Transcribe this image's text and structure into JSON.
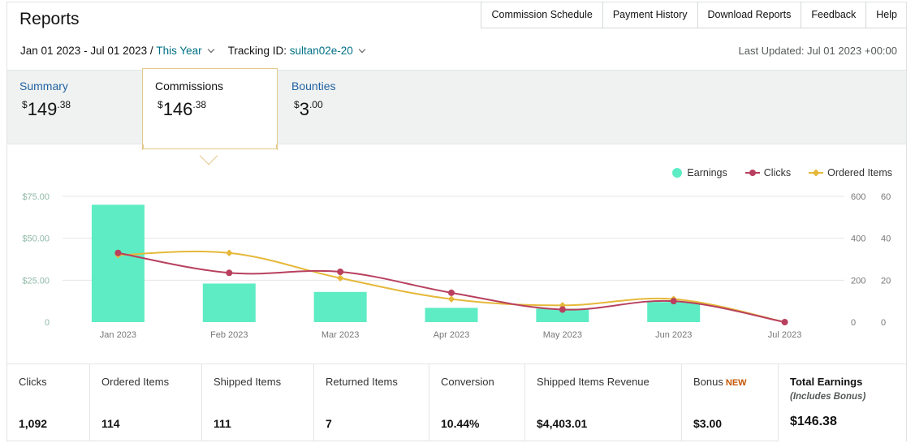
{
  "header": {
    "title": "Reports",
    "nav": [
      "Commission Schedule",
      "Payment History",
      "Download Reports",
      "Feedback",
      "Help"
    ]
  },
  "filters": {
    "date_range": "Jan 01 2023 - Jul 01 2023 /",
    "period": "This Year",
    "tracking_label": "Tracking ID:",
    "tracking_id": "sultan02e-20",
    "last_updated": "Last Updated: Jul 01 2023 +00:00"
  },
  "tabs": {
    "summary": {
      "label": "Summary",
      "currency": "$",
      "dollars": "149",
      "cents": ".38"
    },
    "commissions": {
      "label": "Commissions",
      "currency": "$",
      "dollars": "146",
      "cents": ".38",
      "selected": true
    },
    "bounties": {
      "label": "Bounties",
      "currency": "$",
      "dollars": "3",
      "cents": ".00"
    }
  },
  "legend": {
    "earnings": "Earnings",
    "clicks": "Clicks",
    "ordered_items": "Ordered Items"
  },
  "colors": {
    "earnings": "#5eecc4",
    "clicks": "#b8405e",
    "ordered_items": "#e6b83a",
    "accent_link": "#007185",
    "tab_link": "#2162a1",
    "new_badge": "#c45500"
  },
  "chart_data": {
    "type": "bar",
    "categories": [
      "Jan 2023",
      "Feb 2023",
      "Mar 2023",
      "Apr 2023",
      "May 2023",
      "Jun 2023",
      "Jul 2023"
    ],
    "series": [
      {
        "name": "Earnings",
        "kind": "bar",
        "axis": "left",
        "values": [
          70,
          23,
          18,
          8.5,
          8,
          12,
          0
        ]
      },
      {
        "name": "Clicks",
        "kind": "line",
        "axis": "right1",
        "values": [
          330,
          235,
          240,
          140,
          60,
          100,
          0
        ]
      },
      {
        "name": "Ordered Items",
        "kind": "line",
        "axis": "right2",
        "values": [
          32,
          33,
          21,
          11,
          8,
          11,
          0
        ]
      }
    ],
    "y_left": {
      "ticks": [
        "0",
        "$25.00",
        "$50.00",
        "$75.00"
      ],
      "tick_values": [
        0,
        25,
        50,
        75
      ],
      "range": [
        0,
        75
      ]
    },
    "y_right1": {
      "ticks": [
        "0",
        "200",
        "400",
        "600"
      ],
      "tick_values": [
        0,
        200,
        400,
        600
      ],
      "range": [
        0,
        600
      ]
    },
    "y_right2": {
      "ticks": [
        "0",
        "20",
        "40",
        "60"
      ],
      "tick_values": [
        0,
        20,
        40,
        60
      ],
      "range": [
        0,
        60
      ]
    },
    "grid": true,
    "legend_position": "top-right"
  },
  "stats": [
    {
      "label": "Clicks",
      "value": "1,092"
    },
    {
      "label": "Ordered Items",
      "value": "114"
    },
    {
      "label": "Shipped Items",
      "value": "111"
    },
    {
      "label": "Returned Items",
      "value": "7"
    },
    {
      "label": "Conversion",
      "value": "10.44%"
    },
    {
      "label": "Shipped Items Revenue",
      "value": "$4,403.01"
    },
    {
      "label": "Bonus",
      "badge": "NEW",
      "value": "$3.00"
    },
    {
      "label": "Total Earnings",
      "sublabel": "(Includes Bonus)",
      "value": "$146.38"
    }
  ]
}
